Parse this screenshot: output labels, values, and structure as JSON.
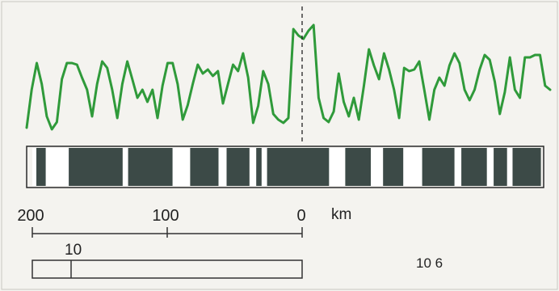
{
  "profile": {
    "line_color": "#2f9a3a",
    "values": [
      0.08,
      0.55,
      0.88,
      0.62,
      0.22,
      0.06,
      0.15,
      0.68,
      0.88,
      0.88,
      0.86,
      0.7,
      0.55,
      0.22,
      0.62,
      0.9,
      0.82,
      0.55,
      0.2,
      0.62,
      0.9,
      0.68,
      0.45,
      0.55,
      0.4,
      0.55,
      0.2,
      0.6,
      0.88,
      0.88,
      0.62,
      0.18,
      0.36,
      0.62,
      0.86,
      0.75,
      0.8,
      0.72,
      0.78,
      0.38,
      0.62,
      0.86,
      0.78,
      1.0,
      0.7,
      0.14,
      0.35,
      0.78,
      0.62,
      0.25,
      0.18,
      0.14,
      0.2,
      1.3,
      1.22,
      1.18,
      1.28,
      1.35,
      0.45,
      0.2,
      0.15,
      0.28,
      0.75,
      0.4,
      0.22,
      0.45,
      0.18,
      0.6,
      1.05,
      0.85,
      0.68,
      1.0,
      0.8,
      0.55,
      0.2,
      0.82,
      0.78,
      0.8,
      0.9,
      0.55,
      0.18,
      0.55,
      0.7,
      0.6,
      0.85,
      1.0,
      0.88,
      0.55,
      0.42,
      0.55,
      0.8,
      0.98,
      0.92,
      0.65,
      0.25,
      0.52,
      0.95,
      0.55,
      0.45,
      0.95,
      0.95,
      0.98,
      0.98,
      0.6,
      0.55
    ]
  },
  "polarity_bar": {
    "dark_color": "#3c4a47",
    "light_color": "#ffffff",
    "segments": [
      {
        "from": 200,
        "to": 197,
        "polarity": "light"
      },
      {
        "from": 197,
        "to": 190,
        "polarity": "dark"
      },
      {
        "from": 190,
        "to": 173,
        "polarity": "light"
      },
      {
        "from": 173,
        "to": 133,
        "polarity": "dark"
      },
      {
        "from": 133,
        "to": 129,
        "polarity": "light"
      },
      {
        "from": 129,
        "to": 96,
        "polarity": "dark"
      },
      {
        "from": 96,
        "to": 83,
        "polarity": "light"
      },
      {
        "from": 83,
        "to": 62,
        "polarity": "dark"
      },
      {
        "from": 62,
        "to": 56,
        "polarity": "light"
      },
      {
        "from": 56,
        "to": 39,
        "polarity": "dark"
      },
      {
        "from": 39,
        "to": 34,
        "polarity": "light"
      },
      {
        "from": 34,
        "to": 30,
        "polarity": "dark"
      },
      {
        "from": 30,
        "to": 26,
        "polarity": "light"
      },
      {
        "from": 26,
        "to": -20,
        "polarity": "dark"
      },
      {
        "from": -20,
        "to": -32,
        "polarity": "light"
      },
      {
        "from": -32,
        "to": -51,
        "polarity": "dark"
      },
      {
        "from": -51,
        "to": -60,
        "polarity": "light"
      },
      {
        "from": -60,
        "to": -75,
        "polarity": "dark"
      },
      {
        "from": -75,
        "to": -89,
        "polarity": "light"
      },
      {
        "from": -89,
        "to": -113,
        "polarity": "dark"
      },
      {
        "from": -113,
        "to": -118,
        "polarity": "light"
      },
      {
        "from": -118,
        "to": -137,
        "polarity": "dark"
      },
      {
        "from": -137,
        "to": -142,
        "polarity": "light"
      },
      {
        "from": -142,
        "to": -152,
        "polarity": "dark"
      },
      {
        "from": -152,
        "to": -156,
        "polarity": "light"
      },
      {
        "from": -156,
        "to": -177,
        "polarity": "dark"
      }
    ]
  },
  "distance_scale": {
    "ticks": [
      {
        "value": 200,
        "label": "200"
      },
      {
        "value": 100,
        "label": "100"
      },
      {
        "value": 0,
        "label": "0"
      }
    ],
    "unit": "km"
  },
  "time_scale": {
    "tick_label": "10",
    "tick_value": 170,
    "multiplier_label": "10 6"
  }
}
